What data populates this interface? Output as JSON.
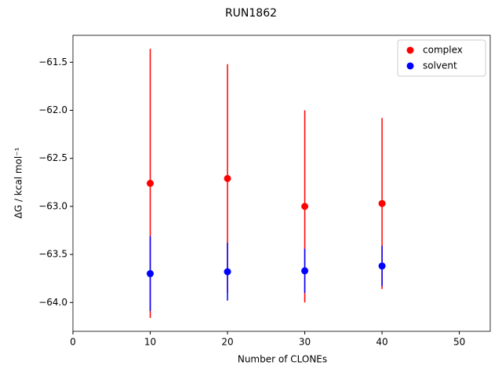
{
  "chart_data": {
    "type": "errorbar",
    "title": "RUN1862",
    "x_label": "Number of CLONEs",
    "y_label": "ΔG / kcal mol⁻¹",
    "x": [
      10,
      20,
      30,
      40
    ],
    "series": [
      {
        "name": "complex",
        "color": "#ff0000",
        "values": [
          -62.76,
          -62.71,
          -63.0,
          -62.97
        ],
        "errors": [
          1.4,
          1.19,
          1.0,
          0.89
        ]
      },
      {
        "name": "solvent",
        "color": "#0000ff",
        "values": [
          -63.7,
          -63.68,
          -63.67,
          -63.62
        ],
        "errors": [
          0.39,
          0.3,
          0.23,
          0.21
        ]
      }
    ],
    "xlim": [
      0,
      54
    ],
    "ylim": [
      -64.3,
      -61.22
    ],
    "xticks": [
      0,
      10,
      20,
      30,
      40,
      50
    ],
    "yticks": [
      {
        "value": -61.5,
        "label": "−61.5"
      },
      {
        "value": -62.0,
        "label": "−62.0"
      },
      {
        "value": -62.5,
        "label": "−62.5"
      },
      {
        "value": -63.0,
        "label": "−63.0"
      },
      {
        "value": -63.5,
        "label": "−63.5"
      },
      {
        "value": -64.0,
        "label": "−64.0"
      }
    ],
    "legend": "upper right"
  }
}
